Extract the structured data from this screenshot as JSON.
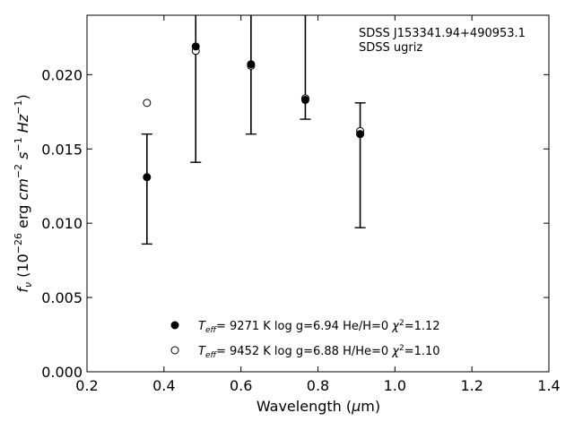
{
  "chart_data": {
    "type": "scatter",
    "title": "",
    "xlabel": "Wavelength (μm)",
    "ylabel": "f_ν (10^-26 erg cm^-2 s^-1 Hz^-1)",
    "xlim": [
      0.2,
      1.4
    ],
    "ylim": [
      0.0,
      0.024
    ],
    "xticks": [
      "0.2",
      "0.4",
      "0.6",
      "0.8",
      "1.0",
      "1.2",
      "1.4"
    ],
    "yticks": [
      "0.000",
      "0.005",
      "0.010",
      "0.015",
      "0.020"
    ],
    "grid": false,
    "legend_placement": "bottom-center",
    "annotations": [
      "SDSS J153341.94+490953.1",
      "SDSS ugriz"
    ],
    "observed": {
      "x": [
        0.3557,
        0.4825,
        0.6261,
        0.7672,
        0.9097
      ],
      "y": [
        0.0131,
        0.0219,
        0.0207,
        0.0183,
        0.016
      ],
      "yerr_low": [
        0.0086,
        0.0141,
        0.016,
        0.017,
        0.0097
      ],
      "yerr_high": [
        0.016,
        0.0245,
        0.0245,
        0.0245,
        0.0181
      ]
    },
    "series": [
      {
        "name": "9271 K  log g=6.94  He/H=0  χ²=1.12",
        "marker": "filled-circle",
        "teff": "9271 K",
        "logg": "log g=6.94",
        "comp": "He/H=0",
        "chi2": "=1.12",
        "x": [
          0.3557,
          0.4825,
          0.6261,
          0.7672,
          0.9097
        ],
        "y": [
          0.0131,
          0.0219,
          0.0207,
          0.0183,
          0.016
        ]
      },
      {
        "name": "9452 K  log g=6.88  H/He=0  χ²=1.10",
        "marker": "open-circle",
        "teff": "9452 K",
        "logg": "log g=6.88",
        "comp": "H/He=0",
        "chi2": "=1.10",
        "x": [
          0.3557,
          0.4825,
          0.6261,
          0.7672,
          0.9097
        ],
        "y": [
          0.0181,
          0.0216,
          0.0206,
          0.0184,
          0.0162
        ]
      }
    ]
  }
}
